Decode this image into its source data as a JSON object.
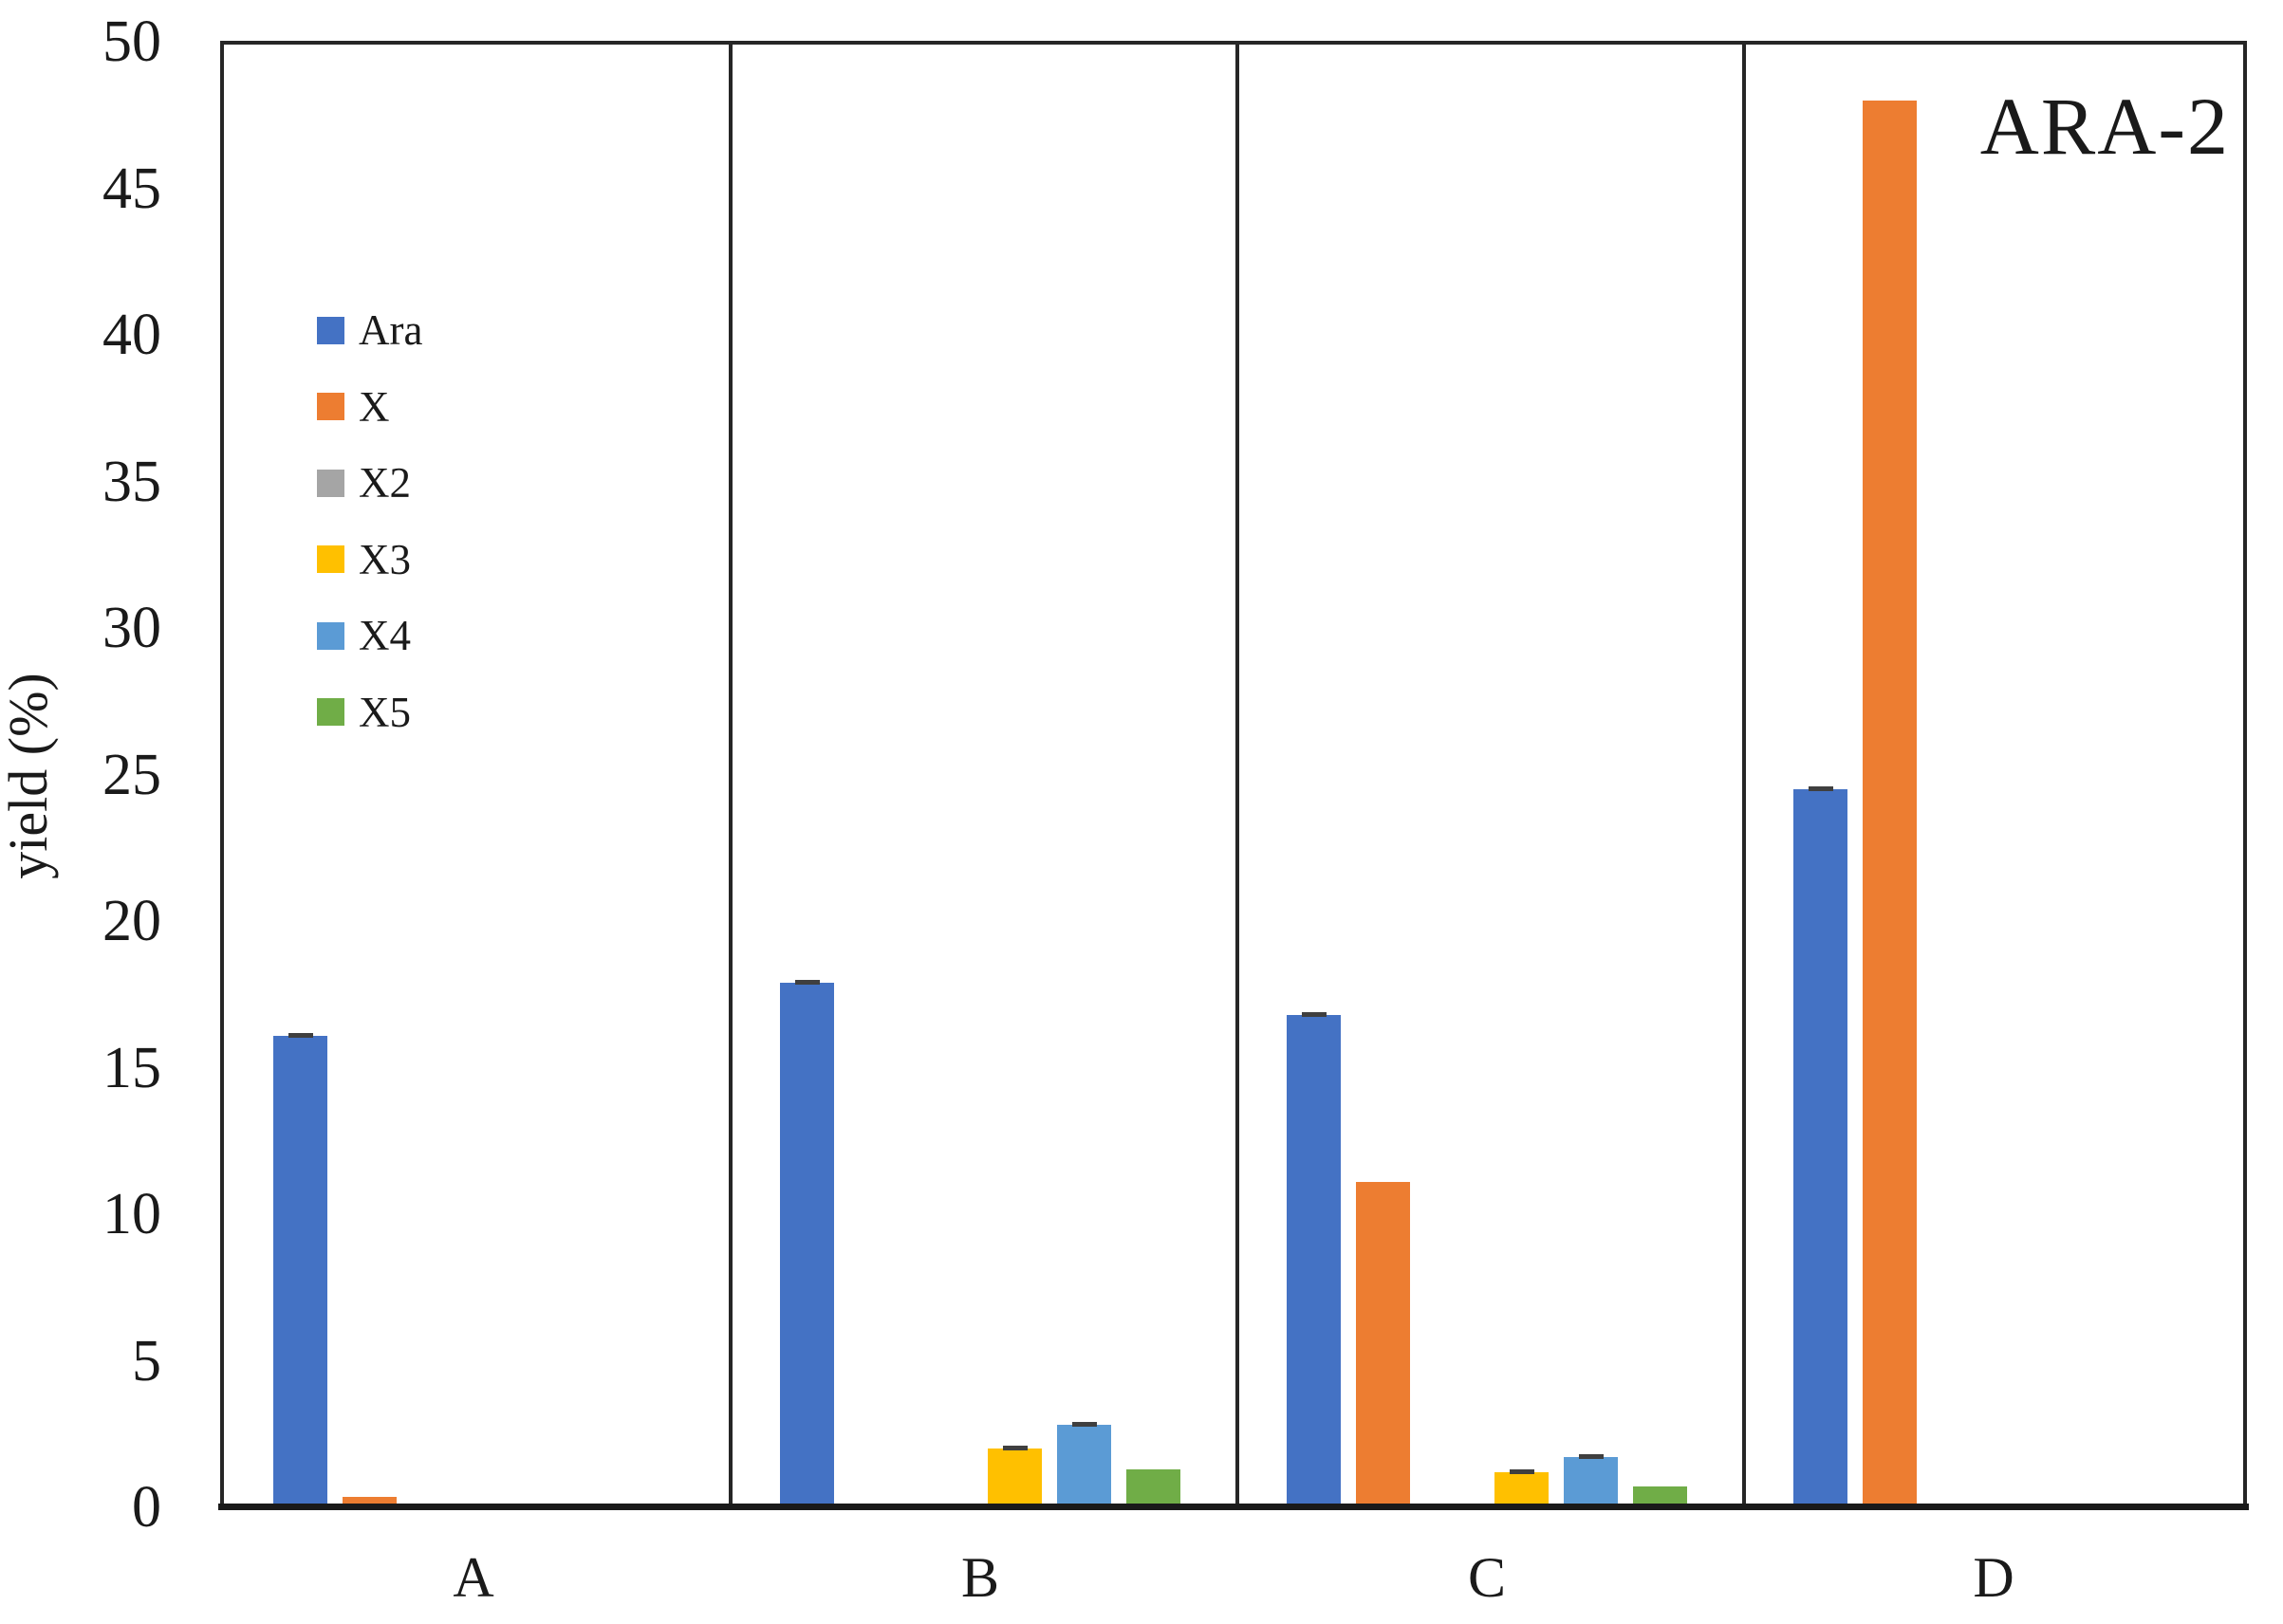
{
  "title": "ARA-2",
  "y_axis": {
    "label": "yield (%)",
    "ticks": [
      "0",
      "5",
      "10",
      "15",
      "20",
      "25",
      "30",
      "35",
      "40",
      "45",
      "50"
    ]
  },
  "chart_data": {
    "type": "bar",
    "categories": [
      "A",
      "B",
      "C",
      "D"
    ],
    "series": [
      {
        "name": "Ara",
        "color": "#4472C4",
        "values": [
          16.1,
          17.9,
          16.8,
          24.5
        ],
        "errors": [
          0.15,
          0.15,
          0.25,
          0.2
        ]
      },
      {
        "name": "X",
        "color": "#ED7D31",
        "values": [
          0.35,
          0,
          11.1,
          48.0
        ],
        "errors": [
          0,
          0,
          0,
          0
        ]
      },
      {
        "name": "X2",
        "color": "#A5A5A5",
        "values": [
          0,
          0,
          0,
          0
        ],
        "errors": [
          0,
          0,
          0,
          0
        ]
      },
      {
        "name": "X3",
        "color": "#FFC000",
        "values": [
          0,
          2.0,
          1.2,
          0
        ],
        "errors": [
          0,
          0.12,
          0.1,
          0
        ]
      },
      {
        "name": "X4",
        "color": "#5B9BD5",
        "values": [
          0,
          2.8,
          1.7,
          0
        ],
        "errors": [
          0,
          0.1,
          0.1,
          0
        ]
      },
      {
        "name": "X5",
        "color": "#70AD47",
        "values": [
          0,
          1.3,
          0.7,
          0
        ],
        "errors": [
          0,
          0,
          0,
          0
        ]
      }
    ],
    "ylim": [
      0,
      50
    ],
    "ytick_step": 5,
    "legend_position": "upper-left-inside",
    "grid": false,
    "panel_borders": true
  }
}
